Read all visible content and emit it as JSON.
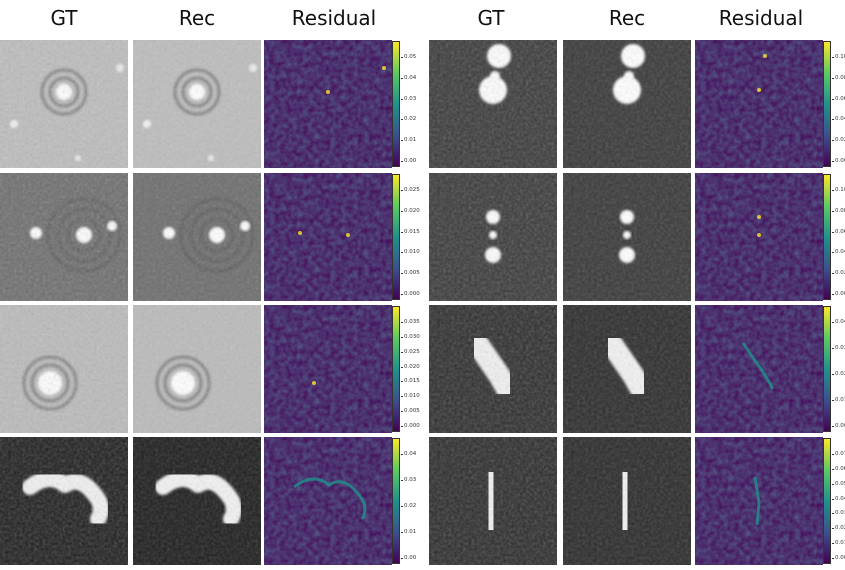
{
  "headers": {
    "left": [
      "GT",
      "Rec",
      "Residual"
    ],
    "right": [
      "GT",
      "Rec",
      "Residual"
    ]
  },
  "colorbars": [
    {
      "ticks": [
        "0.05",
        "0.04",
        "0.03",
        "0.02",
        "0.01",
        "0.00"
      ]
    },
    {
      "ticks": [
        "0.025",
        "0.020",
        "0.015",
        "0.010",
        "0.005",
        "0.000"
      ]
    },
    {
      "ticks": [
        "0.035",
        "0.030",
        "0.025",
        "0.020",
        "0.015",
        "0.010",
        "0.005",
        "0.000"
      ]
    },
    {
      "ticks": [
        "0.04",
        "0.03",
        "0.02",
        "0.01",
        "0.00"
      ]
    },
    {
      "ticks": [
        "0.10",
        "0.08",
        "0.06",
        "0.04",
        "0.02",
        "0.00"
      ]
    },
    {
      "ticks": [
        "0.10",
        "0.08",
        "0.06",
        "0.04",
        "0.02",
        "0.00"
      ]
    },
    {
      "ticks": [
        "0.04",
        "0.03",
        "0.02",
        "0.01",
        "0.00"
      ]
    },
    {
      "ticks": [
        "0.07",
        "0.06",
        "0.05",
        "0.04",
        "0.03",
        "0.02",
        "0.01",
        "0.00"
      ]
    }
  ],
  "colormap": {
    "low": "#440154",
    "mid": "#21918c",
    "high": "#fde725"
  }
}
